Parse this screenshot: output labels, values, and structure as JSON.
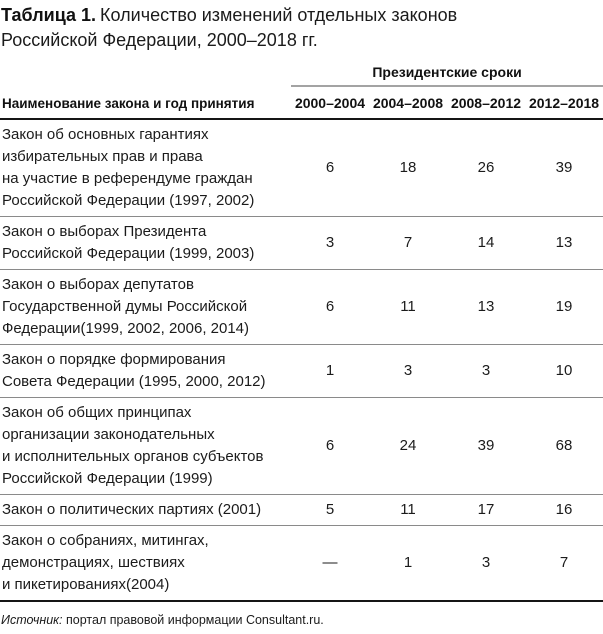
{
  "title": {
    "label": "Таблица 1.",
    "text": "Количество изменений отдельных законов\nРоссийской Федерации, 2000–2018 гг."
  },
  "table": {
    "group_header": "Президентские сроки",
    "name_column_header": "Наименование закона и год принятия",
    "period_headers": [
      "2000–2004",
      "2004–2008",
      "2008–2012",
      "2012–2018"
    ],
    "rows": [
      {
        "name": "Закон об основных гарантиях\nизбирательных прав и права\nна участие в референдуме граждан\nРоссийской Федерации (1997, 2002)",
        "values": [
          "6",
          "18",
          "26",
          "39"
        ]
      },
      {
        "name": "Закон о выборах Президента\nРоссийской Федерации (1999, 2003)",
        "values": [
          "3",
          "7",
          "14",
          "13"
        ]
      },
      {
        "name": "Закон о выборах депутатов\nГосударственной думы Российской\nФедерации(1999, 2002, 2006, 2014)",
        "values": [
          "6",
          "11",
          "13",
          "19"
        ]
      },
      {
        "name": "Закон о порядке формирования\nСовета Федерации (1995, 2000, 2012)",
        "values": [
          "1",
          "3",
          "3",
          "10"
        ]
      },
      {
        "name": "Закон об общих принципах\nорганизации законодательных\nи исполнительных органов субъектов\nРоссийской Федерации (1999)",
        "values": [
          "6",
          "24",
          "39",
          "68"
        ]
      },
      {
        "name": "Закон о политических партиях (2001)",
        "values": [
          "5",
          "11",
          "17",
          "16"
        ]
      },
      {
        "name": "Закон о собраниях, митингах,\nдемонстрациях, шествиях\nи пикетированиях(2004)",
        "values": [
          "—",
          "1",
          "3",
          "7"
        ]
      }
    ]
  },
  "footer": {
    "source_label": "Источник:",
    "source_text": " портал правовой информации Consultant.ru."
  },
  "colors": {
    "text": "#1b1b1b",
    "heavy_rule": "#151515",
    "row_rule": "#8a8a8a",
    "group_rule": "#a3a3a3",
    "background": "#ffffff"
  }
}
